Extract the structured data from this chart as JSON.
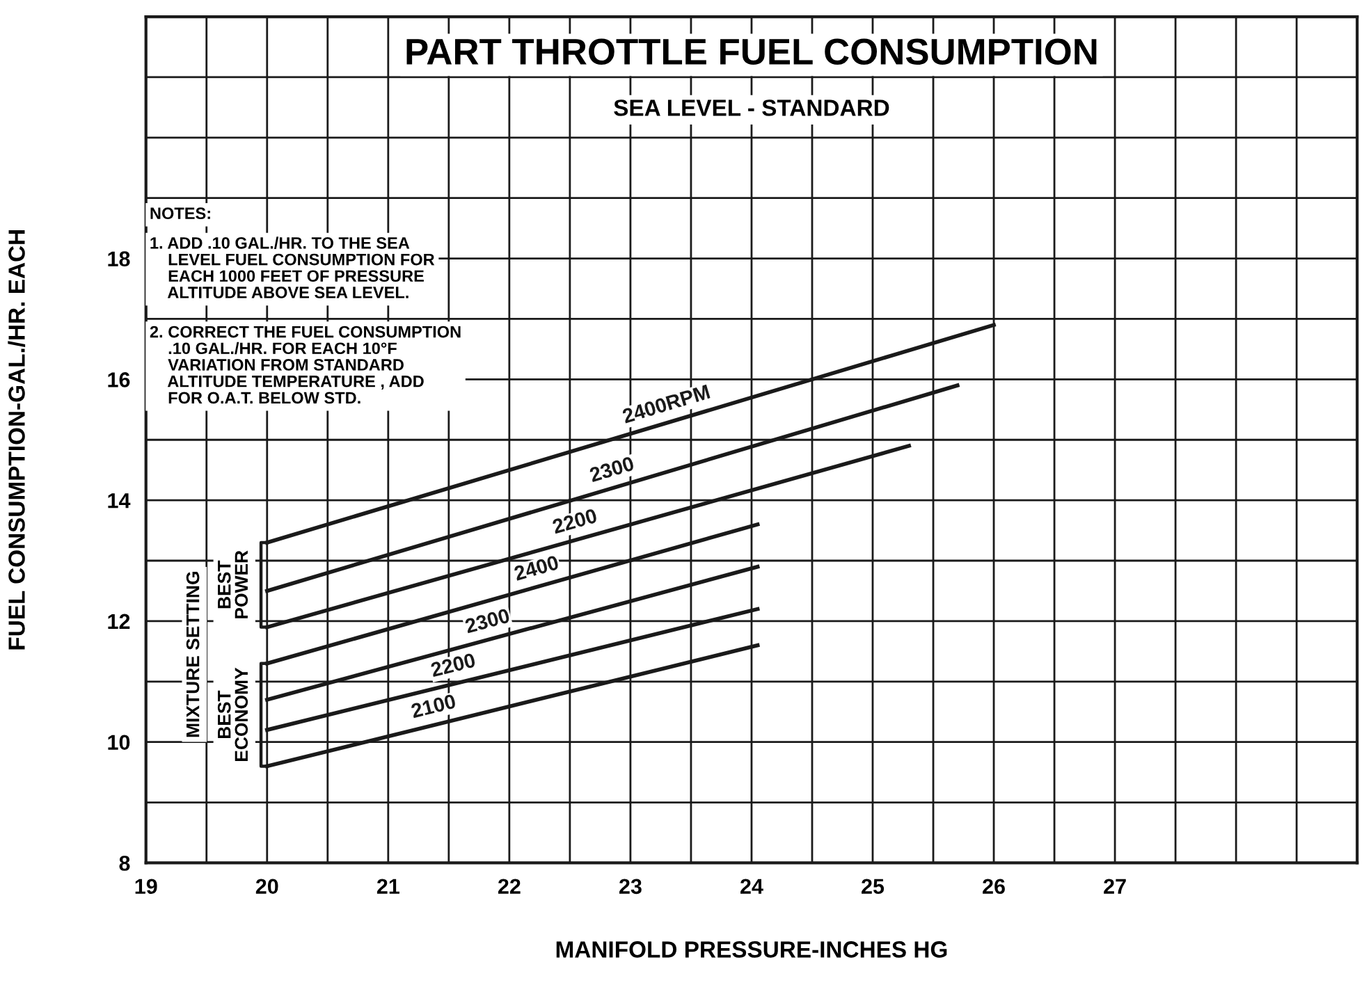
{
  "chart_data": {
    "type": "line",
    "title": "PART THROTTLE FUEL CONSUMPTION",
    "subtitle": "SEA LEVEL - STANDARD",
    "xlabel": "MANIFOLD PRESSURE-INCHES HG",
    "ylabel": "FUEL CONSUMPTION-GAL./HR. EACH",
    "xlim": [
      19,
      29
    ],
    "ylim": [
      8,
      22
    ],
    "xticks": [
      19,
      {
        "value": 19.5,
        "label": null
      },
      20,
      {
        "value": 20.5,
        "label": null
      },
      21,
      {
        "value": 21.5,
        "label": null
      },
      22,
      {
        "value": 22.5,
        "label": null
      },
      23,
      {
        "value": 23.5,
        "label": null
      },
      24,
      {
        "value": 24.5,
        "label": null
      },
      25,
      {
        "value": 25.5,
        "label": null
      },
      26,
      {
        "value": 26.5,
        "label": null
      },
      27,
      {
        "value": 27.5,
        "label": null
      },
      {
        "value": 28,
        "label": null
      },
      {
        "value": 28.5,
        "label": null
      }
    ],
    "yticks": [
      8,
      {
        "value": 9,
        "label": null
      },
      10,
      {
        "value": 11,
        "label": null
      },
      12,
      {
        "value": 13,
        "label": null
      },
      14,
      {
        "value": 15,
        "label": null
      },
      16,
      {
        "value": 17,
        "label": null
      },
      18,
      {
        "value": 19,
        "label": null
      },
      {
        "value": 20,
        "label": null
      },
      {
        "value": 21,
        "label": null
      }
    ],
    "grid": true,
    "marker": "none",
    "line_style": "solid",
    "series": [
      {
        "name": "2400RPM",
        "color": "#1a1a1a",
        "x": [
          20,
          26
        ],
        "values": [
          13.3,
          16.9
        ]
      },
      {
        "name": "2300",
        "color": "#1a1a1a",
        "x": [
          20,
          25.7
        ],
        "values": [
          12.5,
          15.9
        ]
      },
      {
        "name": "2200",
        "color": "#1a1a1a",
        "x": [
          20,
          25.3
        ],
        "values": [
          11.9,
          14.9
        ]
      },
      {
        "name": "2400",
        "color": "#1a1a1a",
        "x": [
          20,
          24.05
        ],
        "values": [
          11.3,
          13.6
        ]
      },
      {
        "name": "2300",
        "color": "#1a1a1a",
        "x": [
          20,
          24.05
        ],
        "values": [
          10.7,
          12.9
        ]
      },
      {
        "name": "2200",
        "color": "#1a1a1a",
        "x": [
          20,
          24.05
        ],
        "values": [
          10.2,
          12.2
        ]
      },
      {
        "name": "2100",
        "color": "#1a1a1a",
        "x": [
          20,
          24.05
        ],
        "values": [
          9.6,
          11.6
        ]
      }
    ],
    "annotations": [
      "NOTES:",
      "1. ADD .10 GAL./HR. TO THE SEA\n    LEVEL FUEL CONSUMPTION FOR\n    EACH 1000 FEET OF PRESSURE\n    ALTITUDE ABOVE SEA LEVEL.",
      "2. CORRECT THE FUEL CONSUMPTION\n    .10 GAL./HR. FOR EACH 10°F\n    VARIATION FROM STANDARD\n    ALTITUDE TEMPERATURE , ADD\n    FOR O.A.T. BELOW STD.",
      "MIXTURE SETTING",
      "BEST\nPOWER",
      "BEST\nECONOMY"
    ]
  }
}
